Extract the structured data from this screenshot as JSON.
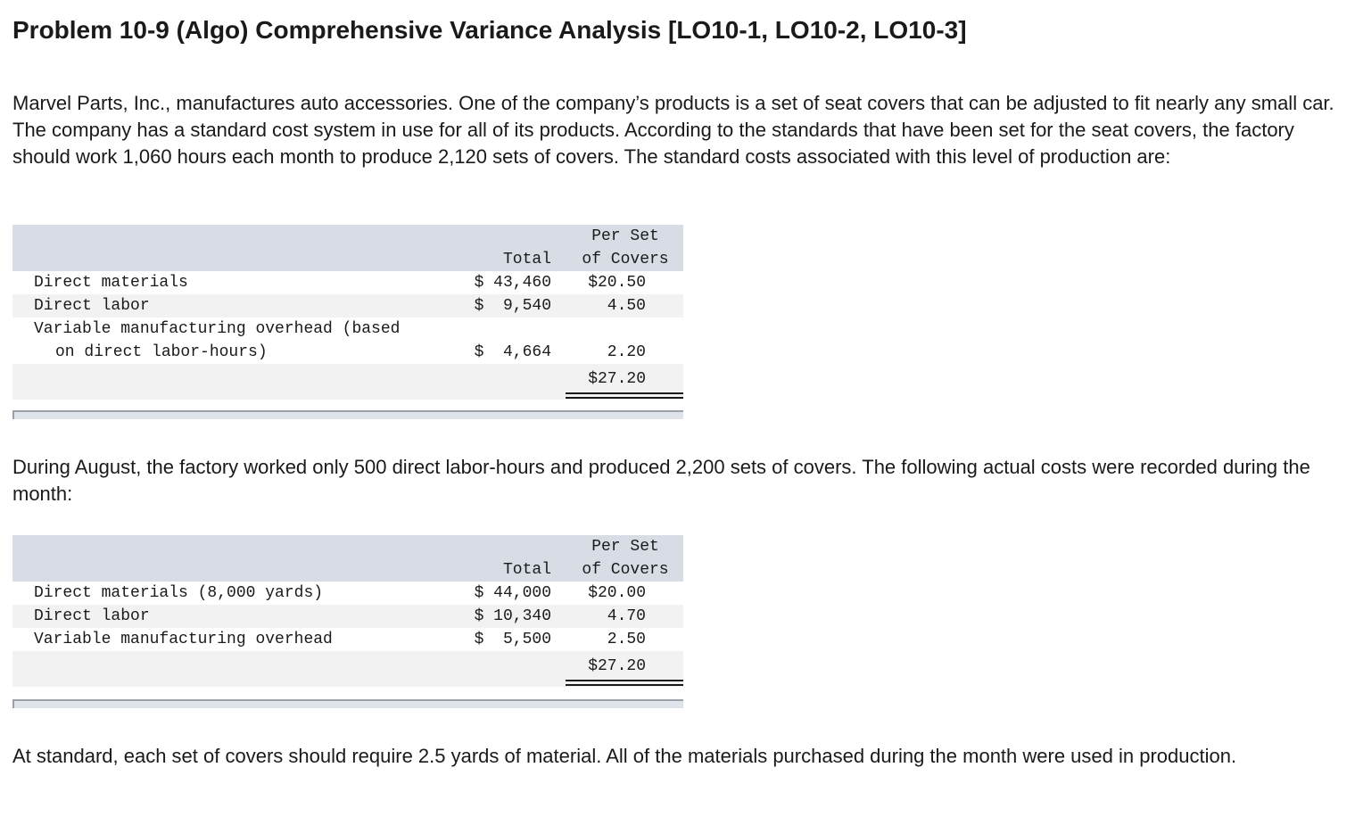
{
  "title": "Problem 10-9 (Algo) Comprehensive Variance Analysis [LO10-1, LO10-2, LO10-3]",
  "intro": "Marvel Parts, Inc., manufactures auto accessories. One of the company’s products is a set of seat covers that can be adjusted to fit nearly any small car. The company has a standard cost system in use for all of its products. According to the standards that have been set for the seat covers, the factory should work 1,060 hours each month to produce 2,120 sets of covers. The standard costs associated with this level of production are:",
  "standard_table": {
    "header_total": "Total",
    "header_per_1": "Per Set",
    "header_per_2": "of Covers",
    "rows": [
      {
        "label": "Direct materials",
        "total": "$ 43,460",
        "per": "$20.50"
      },
      {
        "label": "Direct labor",
        "total": "$  9,540",
        "per": "4.50"
      },
      {
        "label_1": "Variable manufacturing overhead (based",
        "label_2": "on direct labor-hours)",
        "total": "$  4,664",
        "per": "2.20"
      }
    ],
    "grand_per": "$27.20"
  },
  "middle": "During August, the factory worked only 500 direct labor-hours and produced 2,200 sets of covers. The following actual costs were recorded during the month:",
  "actual_table": {
    "header_total": "Total",
    "header_per_1": "Per Set",
    "header_per_2": "of Covers",
    "rows": [
      {
        "label": "Direct materials (8,000 yards)",
        "total": "$ 44,000",
        "per": "$20.00"
      },
      {
        "label": "Direct labor",
        "total": "$ 10,340",
        "per": "4.70"
      },
      {
        "label": "Variable manufacturing overhead",
        "total": "$  5,500",
        "per": "2.50"
      }
    ],
    "grand_per": "$27.20"
  },
  "closing": "At standard, each set of covers should require 2.5 yards of material. All of the materials purchased during the month were used in production."
}
